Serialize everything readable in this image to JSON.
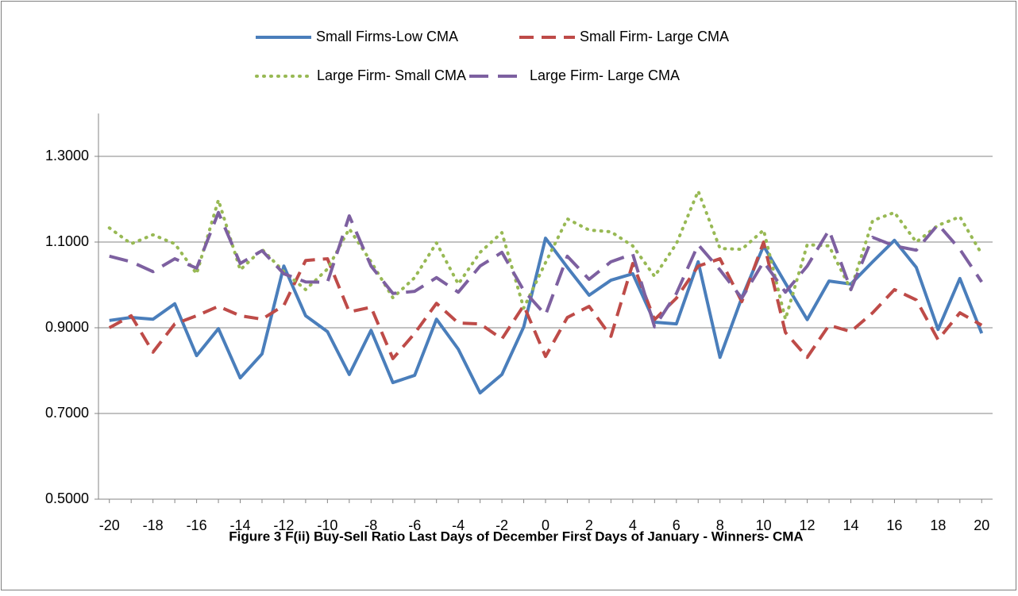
{
  "chart_data": {
    "type": "line",
    "title": "Figure 3 F(ii) Buy-Sell Ratio Last Days of December First Days of January - Winners- CMA",
    "categories": [
      "-20",
      null,
      "-18",
      null,
      "-16",
      null,
      "-14",
      null,
      "-12",
      null,
      "-10",
      null,
      "-8",
      null,
      "-6",
      null,
      "-4",
      null,
      "-2",
      null,
      "0",
      null,
      "2",
      null,
      "4",
      null,
      "6",
      null,
      "8",
      null,
      "10",
      null,
      "12",
      null,
      "14",
      null,
      "16",
      null,
      "18",
      null,
      "20"
    ],
    "ylim": [
      0.5,
      1.4
    ],
    "yticks": [
      {
        "value": 0.5,
        "label": "0.5000"
      },
      {
        "value": 0.7,
        "label": "0.7000"
      },
      {
        "value": 0.9,
        "label": "0.9000"
      },
      {
        "value": 1.1,
        "label": "1.1000"
      },
      {
        "value": 1.3,
        "label": "1.3000"
      }
    ],
    "grid": true,
    "legend": "top",
    "series": [
      {
        "name": "Small Firms-Low CMA",
        "color": "#4a7ebb",
        "dash": "solid",
        "values": [
          0.917,
          0.924,
          0.92,
          0.956,
          0.835,
          0.898,
          0.783,
          0.839,
          1.044,
          0.928,
          0.891,
          0.791,
          0.894,
          0.772,
          0.789,
          0.92,
          0.85,
          0.748,
          0.791,
          0.902,
          1.109,
          1.041,
          0.976,
          1.011,
          1.026,
          0.913,
          0.909,
          1.054,
          0.831,
          0.97,
          1.091,
          1.004,
          0.919,
          1.009,
          1.002,
          1.054,
          1.104,
          1.041,
          0.896,
          1.015,
          0.887
        ]
      },
      {
        "name": "Small Firm- Large CMA",
        "color": "#be4b48",
        "dash": "dashed",
        "values": [
          0.9,
          0.928,
          0.843,
          0.909,
          0.928,
          0.95,
          0.928,
          0.92,
          0.952,
          1.057,
          1.061,
          0.937,
          0.948,
          0.828,
          0.887,
          0.957,
          0.911,
          0.909,
          0.874,
          0.952,
          0.833,
          0.924,
          0.95,
          0.88,
          1.05,
          0.919,
          0.969,
          1.044,
          1.061,
          0.961,
          1.1,
          0.889,
          0.831,
          0.906,
          0.891,
          0.935,
          0.989,
          0.965,
          0.872,
          0.935,
          0.906
        ]
      },
      {
        "name": "Large Firm- Small CMA",
        "color": "#98b954",
        "dash": "dotted",
        "values": [
          1.133,
          1.096,
          1.117,
          1.096,
          1.026,
          1.198,
          1.035,
          1.083,
          1.031,
          0.989,
          1.037,
          1.131,
          1.054,
          0.97,
          1.017,
          1.098,
          1.002,
          1.076,
          1.122,
          0.946,
          1.052,
          1.154,
          1.128,
          1.124,
          1.091,
          1.02,
          1.096,
          1.219,
          1.085,
          1.083,
          1.128,
          0.92,
          1.094,
          1.091,
          0.989,
          1.15,
          1.169,
          1.1,
          1.139,
          1.159,
          1.072
        ]
      },
      {
        "name": "Large Firm- Large CMA",
        "color": "#7d60a0",
        "dash": "longdash",
        "values": [
          1.067,
          1.054,
          1.031,
          1.061,
          1.039,
          1.169,
          1.05,
          1.08,
          1.026,
          1.007,
          1.006,
          1.161,
          1.044,
          0.98,
          0.985,
          1.017,
          0.983,
          1.044,
          1.076,
          0.987,
          0.93,
          1.067,
          1.013,
          1.054,
          1.072,
          0.902,
          0.98,
          1.094,
          1.035,
          0.969,
          1.054,
          0.983,
          1.044,
          1.128,
          0.989,
          1.111,
          1.091,
          1.081,
          1.141,
          1.083,
          1.007
        ]
      }
    ]
  }
}
